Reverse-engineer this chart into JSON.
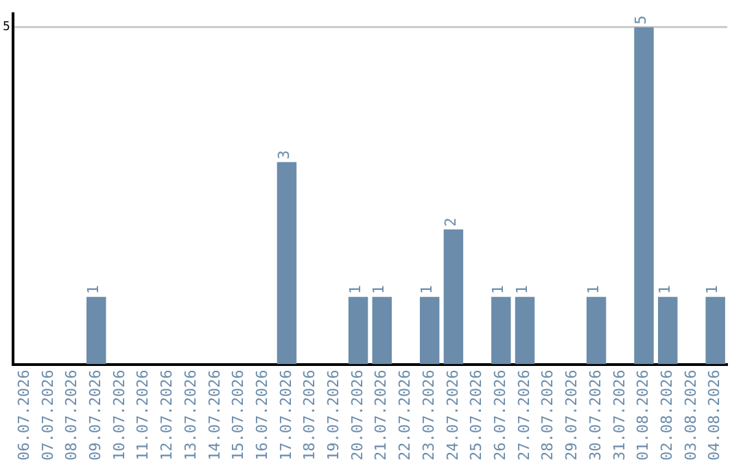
{
  "chart_data": {
    "type": "bar",
    "categories": [
      "06.07.2026",
      "07.07.2026",
      "08.07.2026",
      "09.07.2026",
      "10.07.2026",
      "11.07.2026",
      "12.07.2026",
      "13.07.2026",
      "14.07.2026",
      "15.07.2026",
      "16.07.2026",
      "17.07.2026",
      "18.07.2026",
      "19.07.2026",
      "20.07.2026",
      "21.07.2026",
      "22.07.2026",
      "23.07.2026",
      "24.07.2026",
      "25.07.2026",
      "26.07.2026",
      "27.07.2026",
      "28.07.2026",
      "29.07.2026",
      "30.07.2026",
      "31.07.2026",
      "01.08.2026",
      "02.08.2026",
      "03.08.2026",
      "04.08.2026"
    ],
    "values": [
      0,
      0,
      0,
      1,
      0,
      0,
      0,
      0,
      0,
      0,
      0,
      3,
      0,
      0,
      1,
      1,
      0,
      1,
      2,
      0,
      1,
      1,
      0,
      0,
      1,
      0,
      5,
      1,
      0,
      1
    ],
    "value_labels": [
      null,
      null,
      null,
      "1",
      null,
      null,
      null,
      null,
      null,
      null,
      null,
      "3",
      null,
      null,
      "1",
      "1",
      null,
      "1",
      "2",
      null,
      "1",
      "1",
      null,
      null,
      "1",
      null,
      "5",
      "1",
      null,
      "1"
    ],
    "color": "#6b8cab",
    "ylim": [
      0,
      5.2
    ],
    "yticks": [
      5
    ],
    "grid": "y",
    "legend": false
  }
}
